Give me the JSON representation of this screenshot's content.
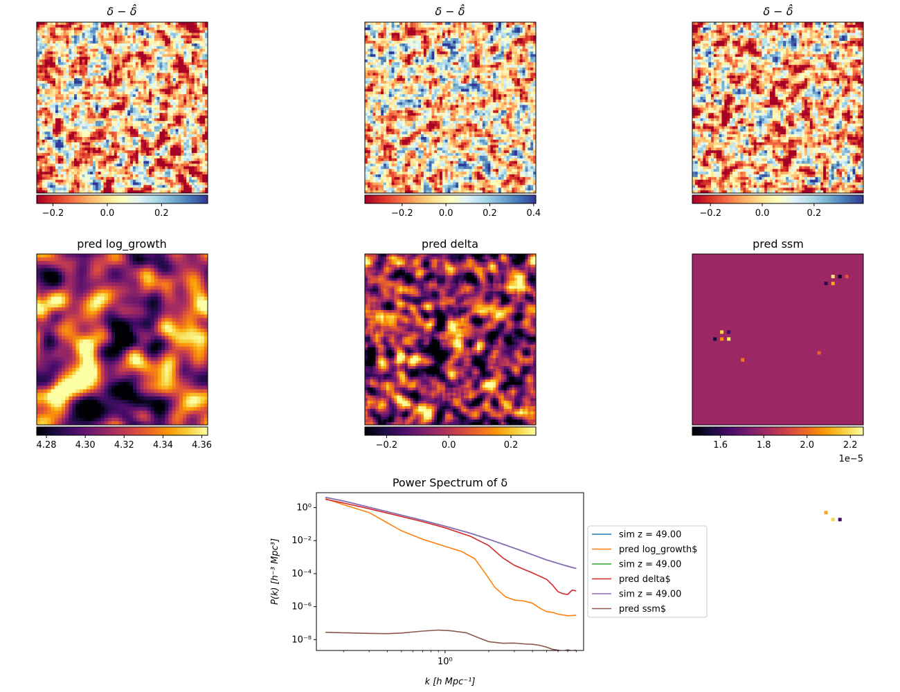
{
  "chart_data": [
    {
      "type": "heatmap",
      "title": "δ − δ̂",
      "colormap": "RdYlBu",
      "clim": [
        -0.26,
        0.37
      ],
      "colorbar_ticks": [
        "−0.2",
        "0.0",
        "0.2"
      ],
      "colorbar_tick_values": [
        -0.2,
        0.0,
        0.2
      ]
    },
    {
      "type": "heatmap",
      "title": "δ − δ̂",
      "colormap": "RdYlBu",
      "clim": [
        -0.37,
        0.41
      ],
      "colorbar_ticks": [
        "−0.2",
        "0.0",
        "0.2",
        "0.4"
      ],
      "colorbar_tick_values": [
        -0.2,
        0.0,
        0.2,
        0.4
      ]
    },
    {
      "type": "heatmap",
      "title": "δ − δ̂",
      "colormap": "RdYlBu",
      "clim": [
        -0.27,
        0.39
      ],
      "colorbar_ticks": [
        "−0.2",
        "0.0",
        "0.2"
      ],
      "colorbar_tick_values": [
        -0.2,
        0.0,
        0.2
      ]
    },
    {
      "type": "heatmap",
      "title": "pred log_growth",
      "colormap": "inferno",
      "clim": [
        4.275,
        4.363
      ],
      "colorbar_ticks": [
        "4.28",
        "4.30",
        "4.32",
        "4.34",
        "4.36"
      ],
      "colorbar_tick_values": [
        4.28,
        4.3,
        4.32,
        4.34,
        4.36
      ]
    },
    {
      "type": "heatmap",
      "title": "pred delta",
      "colormap": "inferno",
      "clim": [
        -0.27,
        0.28
      ],
      "colorbar_ticks": [
        "−0.2",
        "0.0",
        "0.2"
      ],
      "colorbar_tick_values": [
        -0.2,
        0.0,
        0.2
      ]
    },
    {
      "type": "heatmap",
      "title": "pred ssm",
      "colormap": "inferno",
      "clim": [
        1.47,
        2.26
      ],
      "colorbar_ticks": [
        "1.6",
        "1.8",
        "2.0",
        "2.2"
      ],
      "colorbar_tick_values": [
        1.6,
        1.8,
        2.0,
        2.2
      ],
      "colorbar_offset": "1e−5"
    },
    {
      "type": "line",
      "title": "Power Spectrum of δ",
      "xlabel": "k [h Mpc⁻¹]",
      "ylabel": "P(k) [h⁻³ Mpc³]",
      "xscale": "log",
      "yscale": "log",
      "xlim": [
        0.13,
        9.0
      ],
      "ylim": [
        2.2e-09,
        8.0
      ],
      "xticks": [
        {
          "label": "10⁰",
          "value": 1.0
        }
      ],
      "yticks": [
        {
          "label": "10⁰",
          "value": 1.0
        },
        {
          "label": "10⁻²",
          "value": 0.01
        },
        {
          "label": "10⁻⁴",
          "value": 0.0001
        },
        {
          "label": "10⁻⁶",
          "value": 1e-06
        },
        {
          "label": "10⁻⁸",
          "value": 1e-08
        }
      ],
      "legend_position": "right-outside",
      "series": [
        {
          "name": "sim z = 49.00",
          "color": "#1f77b4",
          "x": [
            0.15,
            0.2,
            0.3,
            0.5,
            0.7,
            1.0,
            1.5,
            2.0,
            3.0,
            4.0,
            5.0,
            6.0,
            7.0,
            8.0
          ],
          "y": [
            4.2,
            2.5,
            1.05,
            0.35,
            0.17,
            0.075,
            0.028,
            0.012,
            0.0035,
            0.0014,
            0.00068,
            0.00042,
            0.00028,
            0.000205
          ]
        },
        {
          "name": "pred log_growth$",
          "color": "#ff7f0e",
          "x": [
            0.15,
            0.2,
            0.3,
            0.4,
            0.5,
            0.7,
            1.0,
            1.3,
            1.6,
            1.9,
            2.2,
            2.6,
            3.0,
            3.5,
            4.0,
            4.5,
            5.0,
            5.5,
            6.0,
            7.0,
            8.0
          ],
          "y": [
            3.5,
            1.5,
            0.5,
            0.12,
            0.04,
            0.012,
            0.0045,
            0.0022,
            0.0008,
            0.0001,
            1.5e-05,
            4e-06,
            2.5e-06,
            2.2e-06,
            1.6e-06,
            8e-07,
            5e-07,
            4.5e-07,
            3.5e-07,
            2.8e-07,
            3e-07
          ]
        },
        {
          "name": "sim z = 49.00",
          "color": "#2ca02c",
          "x": [
            0.15,
            0.2,
            0.3,
            0.5,
            0.7,
            1.0,
            1.5,
            2.0,
            3.0,
            4.0,
            5.0,
            6.0,
            7.0,
            8.0
          ],
          "y": [
            4.2,
            2.5,
            1.05,
            0.35,
            0.17,
            0.075,
            0.028,
            0.012,
            0.0035,
            0.0014,
            0.00068,
            0.00042,
            0.00028,
            0.000205
          ]
        },
        {
          "name": "pred delta$",
          "color": "#d62728",
          "x": [
            0.15,
            0.2,
            0.3,
            0.5,
            0.7,
            1.0,
            1.5,
            2.0,
            2.5,
            3.0,
            4.0,
            5.0,
            5.5,
            6.0,
            6.5,
            7.0,
            7.5,
            8.0
          ],
          "y": [
            3.2,
            1.9,
            0.85,
            0.29,
            0.14,
            0.06,
            0.018,
            0.005,
            0.0009,
            0.00032,
            0.00011,
            4.5e-05,
            2e-05,
            8e-06,
            6e-06,
            5.5e-06,
            1e-05,
            9e-06
          ]
        },
        {
          "name": "sim z = 49.00",
          "color": "#9467bd",
          "x": [
            0.15,
            0.2,
            0.3,
            0.5,
            0.7,
            1.0,
            1.5,
            2.0,
            3.0,
            4.0,
            5.0,
            6.0,
            7.0,
            8.0
          ],
          "y": [
            4.2,
            2.5,
            1.05,
            0.35,
            0.17,
            0.075,
            0.028,
            0.012,
            0.0035,
            0.0014,
            0.00068,
            0.00042,
            0.00028,
            0.000205
          ]
        },
        {
          "name": "pred ssm$",
          "color": "#8c564b",
          "x": [
            0.15,
            0.2,
            0.3,
            0.4,
            0.5,
            0.7,
            0.9,
            1.1,
            1.4,
            1.7,
            2.0,
            2.5,
            3.0,
            3.5,
            4.0,
            4.5,
            5.0,
            5.5,
            6.0,
            6.5,
            7.0,
            7.5,
            8.0
          ],
          "y": [
            2.8e-08,
            2.6e-08,
            2.4e-08,
            2.3e-08,
            2.5e-08,
            3.3e-08,
            3.8e-08,
            3.4e-08,
            2.6e-08,
            1.3e-08,
            7.5e-09,
            6e-09,
            6.2e-09,
            5.5e-09,
            5.2e-09,
            4.5e-09,
            3.5e-09,
            2.6e-09,
            2.3e-09,
            2e-09,
            2.4e-09,
            2.1e-09,
            2.3e-09
          ]
        }
      ]
    }
  ]
}
